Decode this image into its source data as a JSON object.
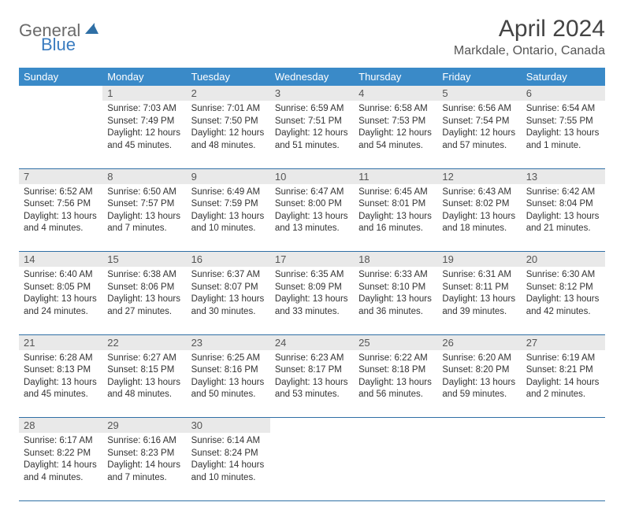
{
  "logo": {
    "general": "General",
    "blue": "Blue"
  },
  "title": "April 2024",
  "location": "Markdale, Ontario, Canada",
  "colors": {
    "header_bg": "#3a8ac8",
    "header_fg": "#ffffff",
    "daynum_bg": "#e9e9e9",
    "rule": "#2f6fa5",
    "logo_gray": "#6a6a6a",
    "logo_blue": "#3a7cc0"
  },
  "dow": [
    "Sunday",
    "Monday",
    "Tuesday",
    "Wednesday",
    "Thursday",
    "Friday",
    "Saturday"
  ],
  "weeks": [
    {
      "nums": [
        "",
        "1",
        "2",
        "3",
        "4",
        "5",
        "6"
      ],
      "cells": [
        null,
        {
          "sr": "Sunrise: 7:03 AM",
          "ss": "Sunset: 7:49 PM",
          "d1": "Daylight: 12 hours",
          "d2": "and 45 minutes."
        },
        {
          "sr": "Sunrise: 7:01 AM",
          "ss": "Sunset: 7:50 PM",
          "d1": "Daylight: 12 hours",
          "d2": "and 48 minutes."
        },
        {
          "sr": "Sunrise: 6:59 AM",
          "ss": "Sunset: 7:51 PM",
          "d1": "Daylight: 12 hours",
          "d2": "and 51 minutes."
        },
        {
          "sr": "Sunrise: 6:58 AM",
          "ss": "Sunset: 7:53 PM",
          "d1": "Daylight: 12 hours",
          "d2": "and 54 minutes."
        },
        {
          "sr": "Sunrise: 6:56 AM",
          "ss": "Sunset: 7:54 PM",
          "d1": "Daylight: 12 hours",
          "d2": "and 57 minutes."
        },
        {
          "sr": "Sunrise: 6:54 AM",
          "ss": "Sunset: 7:55 PM",
          "d1": "Daylight: 13 hours",
          "d2": "and 1 minute."
        }
      ]
    },
    {
      "nums": [
        "7",
        "8",
        "9",
        "10",
        "11",
        "12",
        "13"
      ],
      "cells": [
        {
          "sr": "Sunrise: 6:52 AM",
          "ss": "Sunset: 7:56 PM",
          "d1": "Daylight: 13 hours",
          "d2": "and 4 minutes."
        },
        {
          "sr": "Sunrise: 6:50 AM",
          "ss": "Sunset: 7:57 PM",
          "d1": "Daylight: 13 hours",
          "d2": "and 7 minutes."
        },
        {
          "sr": "Sunrise: 6:49 AM",
          "ss": "Sunset: 7:59 PM",
          "d1": "Daylight: 13 hours",
          "d2": "and 10 minutes."
        },
        {
          "sr": "Sunrise: 6:47 AM",
          "ss": "Sunset: 8:00 PM",
          "d1": "Daylight: 13 hours",
          "d2": "and 13 minutes."
        },
        {
          "sr": "Sunrise: 6:45 AM",
          "ss": "Sunset: 8:01 PM",
          "d1": "Daylight: 13 hours",
          "d2": "and 16 minutes."
        },
        {
          "sr": "Sunrise: 6:43 AM",
          "ss": "Sunset: 8:02 PM",
          "d1": "Daylight: 13 hours",
          "d2": "and 18 minutes."
        },
        {
          "sr": "Sunrise: 6:42 AM",
          "ss": "Sunset: 8:04 PM",
          "d1": "Daylight: 13 hours",
          "d2": "and 21 minutes."
        }
      ]
    },
    {
      "nums": [
        "14",
        "15",
        "16",
        "17",
        "18",
        "19",
        "20"
      ],
      "cells": [
        {
          "sr": "Sunrise: 6:40 AM",
          "ss": "Sunset: 8:05 PM",
          "d1": "Daylight: 13 hours",
          "d2": "and 24 minutes."
        },
        {
          "sr": "Sunrise: 6:38 AM",
          "ss": "Sunset: 8:06 PM",
          "d1": "Daylight: 13 hours",
          "d2": "and 27 minutes."
        },
        {
          "sr": "Sunrise: 6:37 AM",
          "ss": "Sunset: 8:07 PM",
          "d1": "Daylight: 13 hours",
          "d2": "and 30 minutes."
        },
        {
          "sr": "Sunrise: 6:35 AM",
          "ss": "Sunset: 8:09 PM",
          "d1": "Daylight: 13 hours",
          "d2": "and 33 minutes."
        },
        {
          "sr": "Sunrise: 6:33 AM",
          "ss": "Sunset: 8:10 PM",
          "d1": "Daylight: 13 hours",
          "d2": "and 36 minutes."
        },
        {
          "sr": "Sunrise: 6:31 AM",
          "ss": "Sunset: 8:11 PM",
          "d1": "Daylight: 13 hours",
          "d2": "and 39 minutes."
        },
        {
          "sr": "Sunrise: 6:30 AM",
          "ss": "Sunset: 8:12 PM",
          "d1": "Daylight: 13 hours",
          "d2": "and 42 minutes."
        }
      ]
    },
    {
      "nums": [
        "21",
        "22",
        "23",
        "24",
        "25",
        "26",
        "27"
      ],
      "cells": [
        {
          "sr": "Sunrise: 6:28 AM",
          "ss": "Sunset: 8:13 PM",
          "d1": "Daylight: 13 hours",
          "d2": "and 45 minutes."
        },
        {
          "sr": "Sunrise: 6:27 AM",
          "ss": "Sunset: 8:15 PM",
          "d1": "Daylight: 13 hours",
          "d2": "and 48 minutes."
        },
        {
          "sr": "Sunrise: 6:25 AM",
          "ss": "Sunset: 8:16 PM",
          "d1": "Daylight: 13 hours",
          "d2": "and 50 minutes."
        },
        {
          "sr": "Sunrise: 6:23 AM",
          "ss": "Sunset: 8:17 PM",
          "d1": "Daylight: 13 hours",
          "d2": "and 53 minutes."
        },
        {
          "sr": "Sunrise: 6:22 AM",
          "ss": "Sunset: 8:18 PM",
          "d1": "Daylight: 13 hours",
          "d2": "and 56 minutes."
        },
        {
          "sr": "Sunrise: 6:20 AM",
          "ss": "Sunset: 8:20 PM",
          "d1": "Daylight: 13 hours",
          "d2": "and 59 minutes."
        },
        {
          "sr": "Sunrise: 6:19 AM",
          "ss": "Sunset: 8:21 PM",
          "d1": "Daylight: 14 hours",
          "d2": "and 2 minutes."
        }
      ]
    },
    {
      "nums": [
        "28",
        "29",
        "30",
        "",
        "",
        "",
        ""
      ],
      "cells": [
        {
          "sr": "Sunrise: 6:17 AM",
          "ss": "Sunset: 8:22 PM",
          "d1": "Daylight: 14 hours",
          "d2": "and 4 minutes."
        },
        {
          "sr": "Sunrise: 6:16 AM",
          "ss": "Sunset: 8:23 PM",
          "d1": "Daylight: 14 hours",
          "d2": "and 7 minutes."
        },
        {
          "sr": "Sunrise: 6:14 AM",
          "ss": "Sunset: 8:24 PM",
          "d1": "Daylight: 14 hours",
          "d2": "and 10 minutes."
        },
        null,
        null,
        null,
        null
      ]
    }
  ]
}
